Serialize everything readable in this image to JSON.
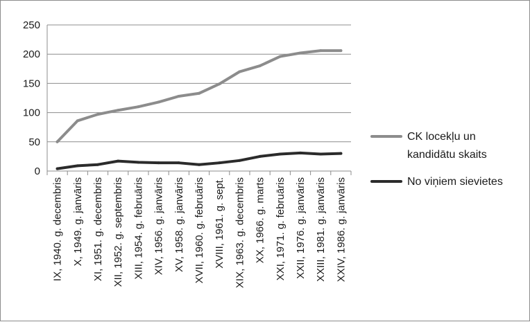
{
  "chart_data": {
    "type": "line",
    "categories": [
      "IX, 1940. g. decembris",
      "X, 1949. g. janvāris",
      "XI, 1951. g. decembris",
      "XII, 1952. g. septembris",
      "XIII, 1954. g. februāris",
      "XIV, 1956. g. janvāris",
      "XV, 1958. g. janvāris",
      "XVII, 1960. g. februāris",
      "XVIII, 1961. g. sept.",
      "XIX, 1963. g. decembris",
      "XX, 1966. g. marts",
      "XXI, 1971. g. februāris",
      "XXII, 1976. g. janvāris",
      "XXIII, 1981. g. janvāris",
      "XXIV, 1986. g. janvāris"
    ],
    "series": [
      {
        "name": "CK locekļu un kandidātu skaits",
        "color": "#8c8c8c",
        "values": [
          50,
          86,
          97,
          104,
          110,
          118,
          128,
          133,
          149,
          170,
          180,
          196,
          202,
          206,
          206
        ]
      },
      {
        "name": "No viņiem sievietes",
        "color": "#2b2b2b",
        "values": [
          4,
          9,
          11,
          17,
          15,
          14,
          14,
          11,
          14,
          18,
          25,
          29,
          31,
          29,
          30
        ]
      }
    ],
    "ylim": [
      0,
      250
    ],
    "yticks": [
      0,
      50,
      100,
      150,
      200,
      250
    ],
    "grid": true,
    "legend_position": "right"
  }
}
